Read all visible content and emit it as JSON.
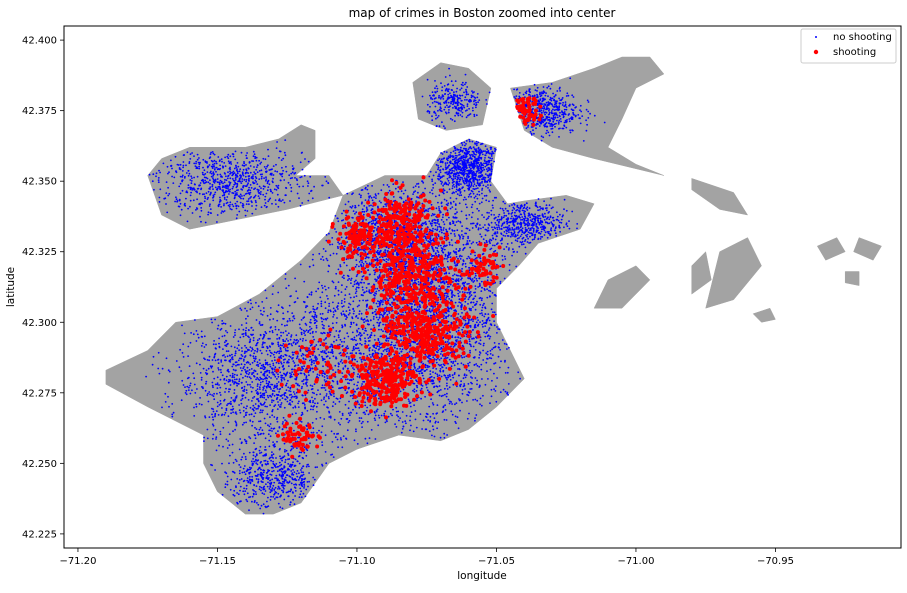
{
  "chart_data": {
    "type": "scatter",
    "title": "map of crimes in Boston zoomed into center",
    "xlabel": "longitude",
    "ylabel": "latitude",
    "xlim": [
      -71.205,
      -70.905
    ],
    "ylim": [
      42.22,
      42.405
    ],
    "xticks": [
      -71.2,
      -71.15,
      -71.1,
      -71.05,
      -71.0,
      -70.95
    ],
    "xtick_labels": [
      "−71.20",
      "−71.15",
      "−71.10",
      "−71.05",
      "−71.00",
      "−70.95"
    ],
    "yticks": [
      42.225,
      42.25,
      42.275,
      42.3,
      42.325,
      42.35,
      42.375,
      42.4
    ],
    "ytick_labels": [
      "42.225",
      "42.250",
      "42.275",
      "42.300",
      "42.325",
      "42.350",
      "42.375",
      "42.400"
    ],
    "grid": false,
    "legend_position": "top-right",
    "basemap_color": "#a3a3a3",
    "series": [
      {
        "name": "no shooting",
        "color": "#0000ff",
        "marker_size": 1,
        "approx_density_regions": [
          {
            "center": [
              -71.075,
              42.305
            ],
            "spread": [
              0.028,
              0.03
            ],
            "weight": 9
          },
          {
            "center": [
              -71.1,
              42.285
            ],
            "spread": [
              0.04,
              0.025
            ],
            "weight": 5
          },
          {
            "center": [
              -71.135,
              42.28
            ],
            "spread": [
              0.025,
              0.02
            ],
            "weight": 4
          },
          {
            "center": [
              -71.145,
              42.35
            ],
            "spread": [
              0.022,
              0.01
            ],
            "weight": 3
          },
          {
            "center": [
              -71.06,
              42.355
            ],
            "spread": [
              0.01,
              0.008
            ],
            "weight": 3
          },
          {
            "center": [
              -71.04,
              42.335
            ],
            "spread": [
              0.012,
              0.007
            ],
            "weight": 2
          },
          {
            "center": [
              -71.035,
              42.375
            ],
            "spread": [
              0.012,
              0.007
            ],
            "weight": 2
          },
          {
            "center": [
              -71.065,
              42.378
            ],
            "spread": [
              0.008,
              0.006
            ],
            "weight": 1
          },
          {
            "center": [
              -71.13,
              42.245
            ],
            "spread": [
              0.015,
              0.01
            ],
            "weight": 2
          },
          {
            "center": [
              -71.085,
              42.33
            ],
            "spread": [
              0.02,
              0.015
            ],
            "weight": 5
          }
        ]
      },
      {
        "name": "shooting",
        "color": "#ff0000",
        "marker_size": 4,
        "approx_density_regions": [
          {
            "center": [
              -71.08,
              42.315
            ],
            "spread": [
              0.014,
              0.016
            ],
            "weight": 8
          },
          {
            "center": [
              -71.09,
              42.28
            ],
            "spread": [
              0.01,
              0.008
            ],
            "weight": 5
          },
          {
            "center": [
              -71.075,
              42.295
            ],
            "spread": [
              0.012,
              0.01
            ],
            "weight": 5
          },
          {
            "center": [
              -71.085,
              42.335
            ],
            "spread": [
              0.01,
              0.01
            ],
            "weight": 4
          },
          {
            "center": [
              -71.1,
              42.33
            ],
            "spread": [
              0.006,
              0.006
            ],
            "weight": 2
          },
          {
            "center": [
              -71.04,
              42.375
            ],
            "spread": [
              0.005,
              0.004
            ],
            "weight": 1
          },
          {
            "center": [
              -71.055,
              42.32
            ],
            "spread": [
              0.005,
              0.005
            ],
            "weight": 1
          },
          {
            "center": [
              -71.115,
              42.285
            ],
            "spread": [
              0.01,
              0.01
            ],
            "weight": 1
          },
          {
            "center": [
              -71.12,
              42.26
            ],
            "spread": [
              0.006,
              0.005
            ],
            "weight": 1
          }
        ]
      }
    ],
    "basemap_polygons": [
      {
        "name": "mainland",
        "points": [
          [
            -71.19,
            42.283
          ],
          [
            -71.175,
            42.29
          ],
          [
            -71.165,
            42.3
          ],
          [
            -71.15,
            42.302
          ],
          [
            -71.135,
            42.31
          ],
          [
            -71.12,
            42.322
          ],
          [
            -71.11,
            42.332
          ],
          [
            -71.105,
            42.345
          ],
          [
            -71.09,
            42.352
          ],
          [
            -71.075,
            42.352
          ],
          [
            -71.07,
            42.36
          ],
          [
            -71.06,
            42.365
          ],
          [
            -71.05,
            42.362
          ],
          [
            -71.052,
            42.35
          ],
          [
            -71.046,
            42.342
          ],
          [
            -71.04,
            42.343
          ],
          [
            -71.025,
            42.345
          ],
          [
            -71.015,
            42.342
          ],
          [
            -71.02,
            42.333
          ],
          [
            -71.035,
            42.328
          ],
          [
            -71.042,
            42.32
          ],
          [
            -71.05,
            42.312
          ],
          [
            -71.05,
            42.3
          ],
          [
            -71.045,
            42.29
          ],
          [
            -71.04,
            42.28
          ],
          [
            -71.05,
            42.27
          ],
          [
            -71.06,
            42.262
          ],
          [
            -71.07,
            42.258
          ],
          [
            -71.085,
            42.26
          ],
          [
            -71.1,
            42.255
          ],
          [
            -71.11,
            42.25
          ],
          [
            -71.115,
            42.243
          ],
          [
            -71.12,
            42.236
          ],
          [
            -71.13,
            42.232
          ],
          [
            -71.14,
            42.232
          ],
          [
            -71.15,
            42.24
          ],
          [
            -71.155,
            42.25
          ],
          [
            -71.155,
            42.26
          ],
          [
            -71.165,
            42.265
          ],
          [
            -71.175,
            42.27
          ],
          [
            -71.19,
            42.278
          ]
        ]
      },
      {
        "name": "allston-brighton",
        "points": [
          [
            -71.175,
            42.352
          ],
          [
            -71.17,
            42.358
          ],
          [
            -71.16,
            42.362
          ],
          [
            -71.14,
            42.362
          ],
          [
            -71.128,
            42.365
          ],
          [
            -71.12,
            42.37
          ],
          [
            -71.115,
            42.368
          ],
          [
            -71.115,
            42.358
          ],
          [
            -71.122,
            42.352
          ],
          [
            -71.11,
            42.352
          ],
          [
            -71.105,
            42.345
          ],
          [
            -71.125,
            42.34
          ],
          [
            -71.145,
            42.336
          ],
          [
            -71.16,
            42.333
          ],
          [
            -71.17,
            42.338
          ]
        ]
      },
      {
        "name": "charlestown",
        "points": [
          [
            -71.08,
            42.385
          ],
          [
            -71.07,
            42.392
          ],
          [
            -71.06,
            42.39
          ],
          [
            -71.052,
            42.383
          ],
          [
            -71.055,
            42.37
          ],
          [
            -71.068,
            42.368
          ],
          [
            -71.078,
            42.372
          ]
        ]
      },
      {
        "name": "east-boston",
        "points": [
          [
            -71.045,
            42.383
          ],
          [
            -71.03,
            42.385
          ],
          [
            -71.015,
            42.39
          ],
          [
            -71.005,
            42.394
          ],
          [
            -70.995,
            42.394
          ],
          [
            -70.99,
            42.388
          ],
          [
            -71.0,
            42.383
          ],
          [
            -71.005,
            42.372
          ],
          [
            -71.01,
            42.362
          ],
          [
            -71.0,
            42.356
          ],
          [
            -70.99,
            42.352
          ],
          [
            -71.015,
            42.358
          ],
          [
            -71.03,
            42.362
          ],
          [
            -71.04,
            42.368
          ]
        ]
      },
      {
        "name": "island-1",
        "points": [
          [
            -70.98,
            42.351
          ],
          [
            -70.965,
            42.346
          ],
          [
            -70.96,
            42.338
          ],
          [
            -70.97,
            42.34
          ],
          [
            -70.98,
            42.347
          ]
        ]
      },
      {
        "name": "island-2",
        "points": [
          [
            -71.01,
            42.315
          ],
          [
            -71.0,
            42.32
          ],
          [
            -70.995,
            42.315
          ],
          [
            -71.005,
            42.305
          ],
          [
            -71.015,
            42.305
          ]
        ]
      },
      {
        "name": "island-3",
        "points": [
          [
            -70.98,
            42.32
          ],
          [
            -70.975,
            42.325
          ],
          [
            -70.973,
            42.315
          ],
          [
            -70.98,
            42.31
          ]
        ]
      },
      {
        "name": "island-4",
        "points": [
          [
            -70.97,
            42.325
          ],
          [
            -70.96,
            42.33
          ],
          [
            -70.955,
            42.32
          ],
          [
            -70.965,
            42.308
          ],
          [
            -70.975,
            42.305
          ]
        ]
      },
      {
        "name": "island-5",
        "points": [
          [
            -70.935,
            42.327
          ],
          [
            -70.928,
            42.33
          ],
          [
            -70.925,
            42.325
          ],
          [
            -70.932,
            42.322
          ]
        ]
      },
      {
        "name": "island-6",
        "points": [
          [
            -70.92,
            42.33
          ],
          [
            -70.912,
            42.327
          ],
          [
            -70.915,
            42.322
          ],
          [
            -70.922,
            42.325
          ]
        ]
      },
      {
        "name": "island-7",
        "points": [
          [
            -70.925,
            42.318
          ],
          [
            -70.92,
            42.318
          ],
          [
            -70.92,
            42.313
          ],
          [
            -70.925,
            42.314
          ]
        ]
      },
      {
        "name": "island-8",
        "points": [
          [
            -70.958,
            42.303
          ],
          [
            -70.952,
            42.305
          ],
          [
            -70.95,
            42.301
          ],
          [
            -70.955,
            42.3
          ]
        ]
      }
    ]
  }
}
